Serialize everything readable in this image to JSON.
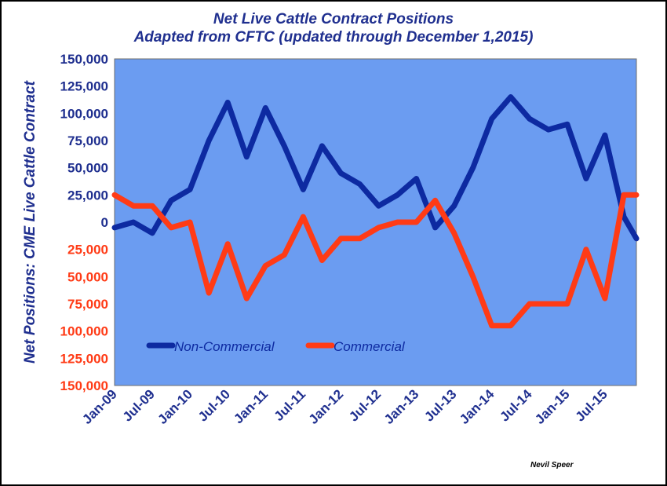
{
  "title": "Net  Live Cattle Contract Positions",
  "subtitle": "Adapted from CFTC (updated through December 1,2015)",
  "credit": "Nevil Speer",
  "colors": {
    "plot_bg": "#6b9cf1",
    "title": "#1f2f8f",
    "non_commercial": "#0d2aa1",
    "commercial": "#ff3b16",
    "positive_ticks": "#1f2f8f",
    "negative_ticks": "#ff3b16"
  },
  "chart_data": {
    "type": "line",
    "title": "Net  Live Cattle Contract Positions",
    "subtitle": "Adapted from CFTC (updated through December 1,2015)",
    "ylabel": "Net Positions:  CME Live Cattle Contract",
    "xlabel": "",
    "ylim": [
      -150000,
      150000
    ],
    "xlim": [
      "2009-01",
      "2015-12"
    ],
    "y_ticks": [
      "150,000",
      "125,000",
      "100,000",
      "75,000",
      "50,000",
      "25,000",
      "0",
      "25,000",
      "50,000",
      "75,000",
      "100,000",
      "125,000",
      "150,000"
    ],
    "y_tick_values": [
      150000,
      125000,
      100000,
      75000,
      50000,
      25000,
      0,
      -25000,
      -50000,
      -75000,
      -100000,
      -125000,
      -150000
    ],
    "x_ticks": [
      "Jan-09",
      "Jul-09",
      "Jan-10",
      "Jul-10",
      "Jan-11",
      "Jul-11",
      "Jan-12",
      "Jul-12",
      "Jan-13",
      "Jul-13",
      "Jan-14",
      "Jul-14",
      "Jan-15",
      "Jul-15"
    ],
    "x_tick_dates": [
      "2009-01",
      "2009-07",
      "2010-01",
      "2010-07",
      "2011-01",
      "2011-07",
      "2012-01",
      "2012-07",
      "2013-01",
      "2013-07",
      "2014-01",
      "2014-07",
      "2015-01",
      "2015-07"
    ],
    "grid": false,
    "legend": "bottom-left",
    "x": [
      "2009-01",
      "2009-04",
      "2009-07",
      "2009-10",
      "2010-01",
      "2010-04",
      "2010-07",
      "2010-10",
      "2011-01",
      "2011-04",
      "2011-07",
      "2011-10",
      "2012-01",
      "2012-04",
      "2012-07",
      "2012-10",
      "2013-01",
      "2013-04",
      "2013-07",
      "2013-10",
      "2014-01",
      "2014-04",
      "2014-07",
      "2014-10",
      "2015-01",
      "2015-04",
      "2015-07",
      "2015-10",
      "2015-12"
    ],
    "series": [
      {
        "name": "Non-Commercial",
        "values": [
          -5000,
          0,
          -10000,
          20000,
          30000,
          75000,
          110000,
          60000,
          105000,
          70000,
          30000,
          70000,
          45000,
          35000,
          15000,
          25000,
          40000,
          -5000,
          15000,
          50000,
          95000,
          115000,
          95000,
          85000,
          90000,
          40000,
          80000,
          5000,
          -15000
        ]
      },
      {
        "name": "Commercial",
        "values": [
          25000,
          15000,
          15000,
          -5000,
          0,
          -65000,
          -20000,
          -70000,
          -40000,
          -30000,
          5000,
          -35000,
          -15000,
          -15000,
          -5000,
          0,
          0,
          20000,
          -10000,
          -50000,
          -95000,
          -95000,
          -75000,
          -75000,
          -75000,
          -25000,
          -70000,
          25000,
          25000
        ]
      }
    ]
  }
}
